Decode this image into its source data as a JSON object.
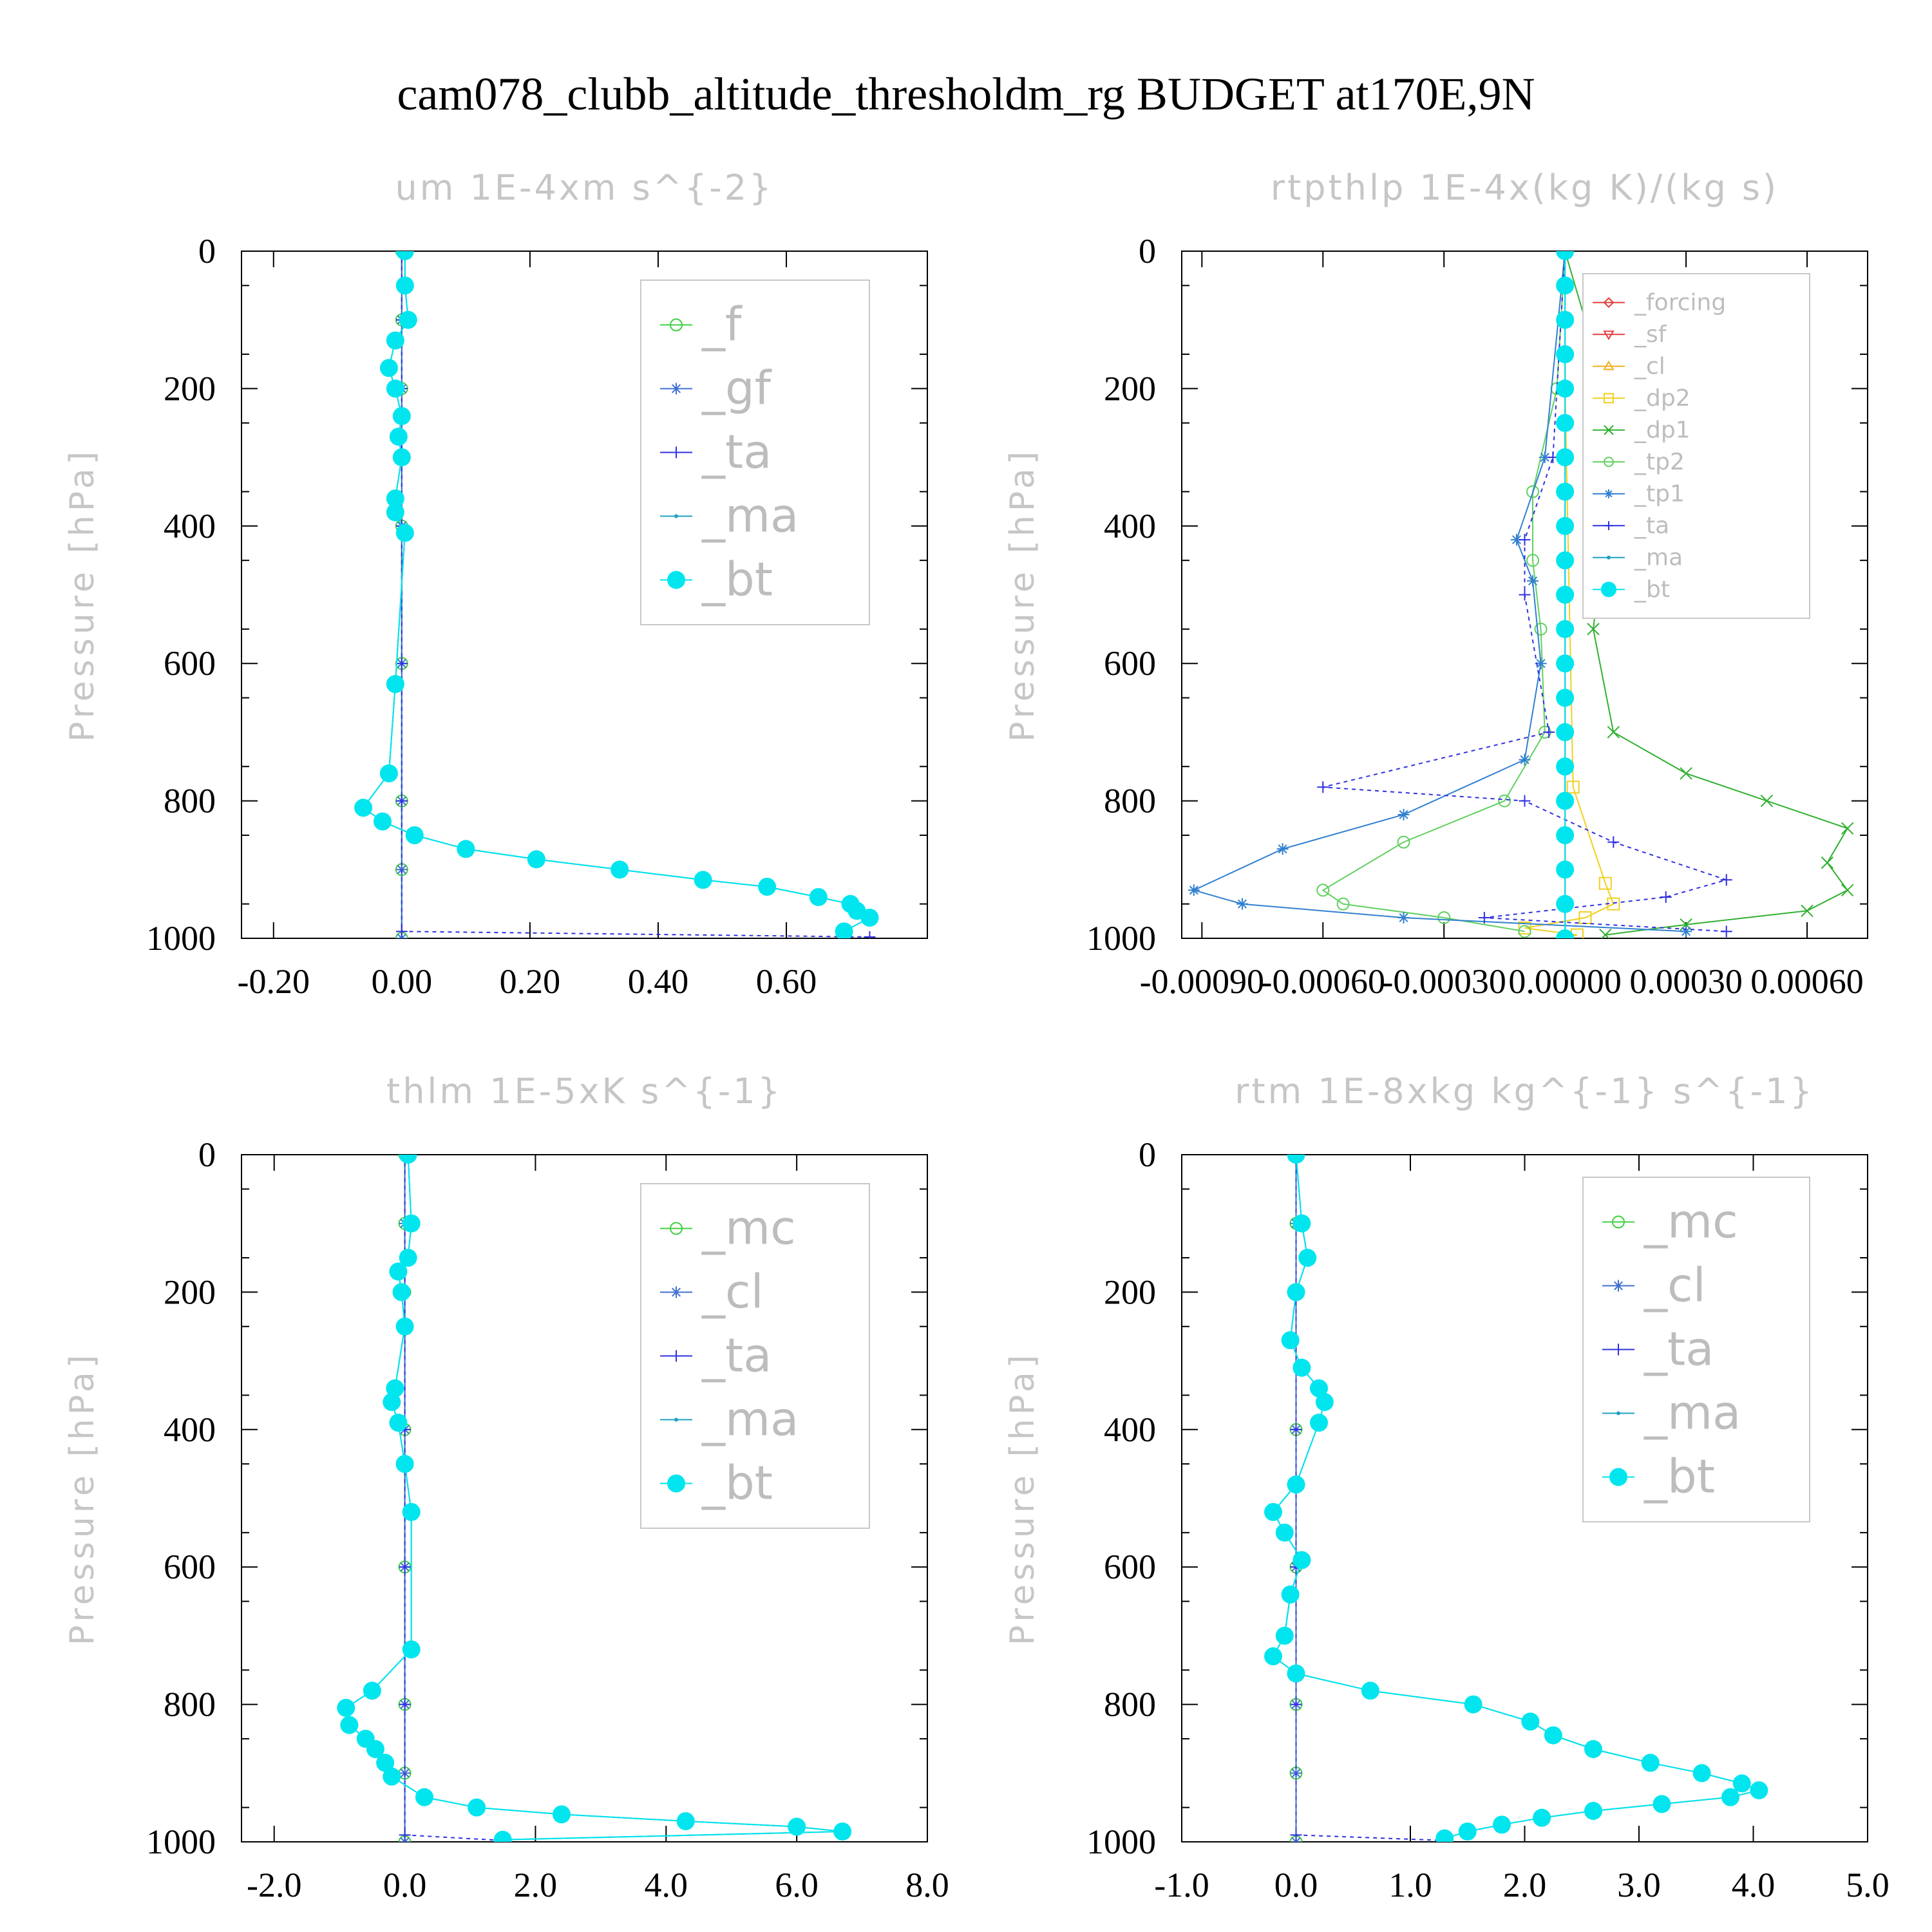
{
  "figure": {
    "title": "cam078_clubb_altitude_thresholdm_rg  BUDGET at170E,9N"
  },
  "chart_data": [
    {
      "type": "line",
      "title": "um  1E-4xm s^{-2}",
      "ylabel": "Pressure [hPa]",
      "xlabel": "",
      "xlim": [
        -0.25,
        0.82
      ],
      "ylim": [
        1000,
        0
      ],
      "xticks": [
        -0.2,
        0.0,
        0.2,
        0.4,
        0.6
      ],
      "xtick_labels": [
        "-0.20",
        "0.00",
        "0.20",
        "0.40",
        "0.60"
      ],
      "yticks": [
        0,
        200,
        400,
        600,
        800,
        1000
      ],
      "ytick_labels": [
        "0",
        "200",
        "400",
        "600",
        "800",
        "1000"
      ],
      "legend_position": "top-right",
      "legend_font": 72,
      "series": [
        {
          "name": "_f",
          "color": "#40d040",
          "marker": "circle-open",
          "x": [
            0.0,
            0.0,
            0.0,
            0.0,
            0.0,
            0.0,
            0.0,
            0.0
          ],
          "y": [
            0,
            100,
            200,
            400,
            600,
            800,
            900,
            1000
          ]
        },
        {
          "name": "_gf",
          "color": "#4070d0",
          "marker": "star",
          "x": [
            0.0,
            0.0,
            0.0,
            0.0,
            0.0,
            0.0,
            0.0,
            0.0
          ],
          "y": [
            0,
            100,
            200,
            400,
            600,
            800,
            900,
            1000
          ]
        },
        {
          "name": "_ta",
          "color": "#3030e0",
          "marker": "plus",
          "dash": "6,6",
          "x": [
            0.0,
            0.0,
            0.0,
            0.0,
            0.0,
            0.0,
            0.0,
            0.73
          ],
          "y": [
            0,
            100,
            200,
            400,
            600,
            800,
            990,
            998
          ]
        },
        {
          "name": "_ma",
          "color": "#20a0c0",
          "marker": "dot",
          "x": [
            0.005,
            0.005,
            0.01,
            -0.01,
            -0.02,
            -0.01,
            0.0,
            -0.005,
            0.0,
            -0.01,
            -0.01,
            0.005,
            -0.01,
            -0.02,
            -0.06,
            -0.03,
            0.02,
            0.1,
            0.21,
            0.34,
            0.47,
            0.57,
            0.65,
            0.7,
            0.71,
            0.73,
            0.69
          ],
          "y": [
            0,
            50,
            100,
            130,
            170,
            200,
            240,
            270,
            300,
            360,
            380,
            410,
            630,
            760,
            810,
            830,
            850,
            870,
            885,
            900,
            915,
            925,
            940,
            950,
            960,
            970,
            990
          ]
        },
        {
          "name": "_bt",
          "color": "#00e5ee",
          "marker": "dot-big",
          "x": [
            0.005,
            0.005,
            0.01,
            -0.01,
            -0.02,
            -0.01,
            0.0,
            -0.005,
            0.0,
            -0.01,
            -0.01,
            0.005,
            -0.01,
            -0.02,
            -0.06,
            -0.03,
            0.02,
            0.1,
            0.21,
            0.34,
            0.47,
            0.57,
            0.65,
            0.7,
            0.71,
            0.73,
            0.69
          ],
          "y": [
            0,
            50,
            100,
            130,
            170,
            200,
            240,
            270,
            300,
            360,
            380,
            410,
            630,
            760,
            810,
            830,
            850,
            870,
            885,
            900,
            915,
            925,
            940,
            950,
            960,
            970,
            990
          ]
        }
      ]
    },
    {
      "type": "line",
      "title": "rtpthlp  1E-4x(kg K)/(kg s)",
      "ylabel": "Pressure [hPa]",
      "xlabel": "",
      "xlim": [
        -0.00095,
        0.00075
      ],
      "ylim": [
        1000,
        0
      ],
      "xticks": [
        -0.0009,
        -0.0006,
        -0.0003,
        0.0,
        0.0003,
        0.0006
      ],
      "xtick_labels": [
        "-0.00090",
        "-0.00060",
        "-0.00030",
        "0.00000",
        "0.00030",
        "0.00060"
      ],
      "yticks": [
        0,
        200,
        400,
        600,
        800,
        1000
      ],
      "ytick_labels": [
        "0",
        "200",
        "400",
        "600",
        "800",
        "1000"
      ],
      "legend_position": "top-right",
      "legend_font": 36,
      "series": [
        {
          "name": "_forcing",
          "color": "#e04040",
          "marker": "diamond-open",
          "x": [
            0.0,
            0.0,
            0.0,
            0.0,
            0.0,
            0.0
          ],
          "y": [
            0,
            200,
            400,
            600,
            800,
            1000
          ]
        },
        {
          "name": "_sf",
          "color": "#e04040",
          "marker": "tri-down",
          "x": [
            0.0,
            0.0,
            0.0,
            0.0,
            0.0,
            0.0
          ],
          "y": [
            0,
            200,
            400,
            600,
            800,
            1000
          ]
        },
        {
          "name": "_cl",
          "color": "#f0b020",
          "marker": "tri-up",
          "x": [
            0.0,
            0.0,
            0.0,
            0.0,
            0.0,
            0.0
          ],
          "y": [
            0,
            200,
            400,
            600,
            800,
            1000
          ]
        },
        {
          "name": "_dp2",
          "color": "#f0d020",
          "marker": "square-open",
          "x": [
            0.0,
            0.0,
            2e-05,
            0.0001,
            0.00012,
            5e-05,
            -0.0001,
            3e-05,
            0.0
          ],
          "y": [
            0,
            200,
            780,
            920,
            950,
            970,
            985,
            995,
            1000
          ]
        },
        {
          "name": "_dp1",
          "color": "#30b030",
          "marker": "x",
          "x": [
            0.0,
            0.0001,
            0.00018,
            0.0001,
            7e-05,
            0.00012,
            0.0003,
            0.0005,
            0.0007,
            0.00065,
            0.0007,
            0.0006,
            0.0003,
            0.0001
          ],
          "y": [
            0,
            200,
            300,
            400,
            550,
            700,
            760,
            800,
            840,
            890,
            930,
            960,
            980,
            995
          ]
        },
        {
          "name": "_tp2",
          "color": "#60d060",
          "marker": "circle-open",
          "x": [
            0.0,
            -2e-05,
            -8e-05,
            -8e-05,
            -6e-05,
            -5e-05,
            -0.00015,
            -0.0004,
            -0.0006,
            -0.00055,
            -0.0003,
            -0.0001
          ],
          "y": [
            0,
            200,
            350,
            450,
            550,
            700,
            800,
            860,
            930,
            950,
            970,
            990
          ]
        },
        {
          "name": "_tp1",
          "color": "#3080d0",
          "marker": "star",
          "x": [
            0.0,
            -5e-05,
            -0.00012,
            -8e-05,
            -6e-05,
            -0.0001,
            -0.0004,
            -0.0007,
            -0.00092,
            -0.0008,
            -0.0004,
            0.0003
          ],
          "y": [
            0,
            300,
            420,
            480,
            600,
            740,
            820,
            870,
            930,
            950,
            970,
            990
          ]
        },
        {
          "name": "_ta",
          "color": "#3030e0",
          "marker": "plus",
          "dash": "6,6",
          "x": [
            0.0,
            -3e-05,
            -0.0001,
            -0.0001,
            -4e-05,
            -0.0006,
            -0.0001,
            0.00012,
            0.0004,
            0.00025,
            -0.0002,
            0.0004
          ],
          "y": [
            0,
            300,
            420,
            500,
            700,
            780,
            800,
            860,
            915,
            940,
            970,
            990
          ]
        },
        {
          "name": "_ma",
          "color": "#20a0c0",
          "marker": "dot",
          "x": [
            0.0,
            0.0,
            0.0,
            0.0,
            0.0,
            0.0
          ],
          "y": [
            0,
            200,
            400,
            600,
            800,
            1000
          ]
        },
        {
          "name": "_bt",
          "color": "#00e5ee",
          "marker": "dot-big",
          "x": [
            0.0,
            0.0,
            0.0,
            0.0,
            0.0,
            0.0,
            0.0,
            0.0,
            0.0,
            0.0,
            0.0,
            0.0,
            0.0,
            0.0,
            0.0,
            0.0,
            0.0,
            0.0,
            0.0,
            0.0,
            0.0
          ],
          "y": [
            0,
            50,
            100,
            150,
            200,
            250,
            300,
            350,
            400,
            450,
            500,
            550,
            600,
            650,
            700,
            750,
            800,
            850,
            900,
            950,
            1000
          ]
        }
      ]
    },
    {
      "type": "line",
      "title": "thlm  1E-5xK s^{-1}",
      "ylabel": "Pressure [hPa]",
      "xlabel": "",
      "xlim": [
        -2.5,
        8.0
      ],
      "ylim": [
        1000,
        0
      ],
      "xticks": [
        -2.0,
        0.0,
        2.0,
        4.0,
        6.0,
        8.0
      ],
      "xtick_labels": [
        "-2.0",
        "0.0",
        "2.0",
        "4.0",
        "6.0",
        "8.0"
      ],
      "yticks": [
        0,
        200,
        400,
        600,
        800,
        1000
      ],
      "ytick_labels": [
        "0",
        "200",
        "400",
        "600",
        "800",
        "1000"
      ],
      "legend_position": "top-right",
      "legend_font": 72,
      "series": [
        {
          "name": "_mc",
          "color": "#40d040",
          "marker": "circle-open",
          "x": [
            0.0,
            0.0,
            0.0,
            0.0,
            0.0,
            0.0,
            0.0,
            0.0
          ],
          "y": [
            0,
            100,
            200,
            400,
            600,
            800,
            900,
            1000
          ]
        },
        {
          "name": "_cl",
          "color": "#4070d0",
          "marker": "star",
          "x": [
            0.0,
            0.0,
            0.0,
            0.0,
            0.0,
            0.0,
            0.0,
            0.0
          ],
          "y": [
            0,
            100,
            200,
            400,
            600,
            800,
            900,
            1000
          ]
        },
        {
          "name": "_ta",
          "color": "#3030e0",
          "marker": "plus",
          "dash": "6,6",
          "x": [
            0.0,
            0.0,
            0.0,
            0.0,
            0.0,
            0.0,
            1.5
          ],
          "y": [
            0,
            200,
            400,
            600,
            800,
            990,
            998
          ]
        },
        {
          "name": "_ma",
          "color": "#20a0c0",
          "marker": "dot",
          "x": [
            0.05,
            0.1,
            0.05,
            -0.1,
            -0.05,
            0.0,
            -0.15,
            -0.2,
            -0.1,
            0.0,
            0.1,
            0.1,
            -0.5,
            -0.9,
            -0.85,
            -0.6,
            -0.45,
            -0.3,
            -0.2,
            0.3,
            1.1,
            2.4,
            4.3,
            6.0,
            6.7,
            1.5
          ],
          "y": [
            0,
            100,
            150,
            170,
            200,
            250,
            340,
            360,
            390,
            450,
            520,
            720,
            780,
            805,
            830,
            850,
            865,
            885,
            905,
            935,
            950,
            960,
            970,
            978,
            985,
            997
          ]
        },
        {
          "name": "_bt",
          "color": "#00e5ee",
          "marker": "dot-big",
          "x": [
            0.05,
            0.1,
            0.05,
            -0.1,
            -0.05,
            0.0,
            -0.15,
            -0.2,
            -0.1,
            0.0,
            0.1,
            0.1,
            -0.5,
            -0.9,
            -0.85,
            -0.6,
            -0.45,
            -0.3,
            -0.2,
            0.3,
            1.1,
            2.4,
            4.3,
            6.0,
            6.7,
            1.5
          ],
          "y": [
            0,
            100,
            150,
            170,
            200,
            250,
            340,
            360,
            390,
            450,
            520,
            720,
            780,
            805,
            830,
            850,
            865,
            885,
            905,
            935,
            950,
            960,
            970,
            978,
            985,
            997
          ]
        }
      ]
    },
    {
      "type": "line",
      "title": "rtm  1E-8xkg kg^{-1} s^{-1}",
      "ylabel": "Pressure [hPa]",
      "xlabel": "",
      "xlim": [
        -1.0,
        5.0
      ],
      "ylim": [
        1000,
        0
      ],
      "xticks": [
        -1.0,
        0.0,
        1.0,
        2.0,
        3.0,
        4.0,
        5.0
      ],
      "xtick_labels": [
        "-1.0",
        "0.0",
        "1.0",
        "2.0",
        "3.0",
        "4.0",
        "5.0"
      ],
      "yticks": [
        0,
        200,
        400,
        600,
        800,
        1000
      ],
      "ytick_labels": [
        "0",
        "200",
        "400",
        "600",
        "800",
        "1000"
      ],
      "legend_position": "top-right",
      "legend_font": 72,
      "series": [
        {
          "name": "_mc",
          "color": "#40d040",
          "marker": "circle-open",
          "x": [
            0.0,
            0.0,
            0.0,
            0.0,
            0.0,
            0.0,
            0.0,
            0.0
          ],
          "y": [
            0,
            100,
            200,
            400,
            600,
            800,
            900,
            1000
          ]
        },
        {
          "name": "_cl",
          "color": "#4070d0",
          "marker": "star",
          "x": [
            0.0,
            0.0,
            0.0,
            0.0,
            0.0,
            0.0,
            0.0,
            0.0
          ],
          "y": [
            0,
            100,
            200,
            400,
            600,
            800,
            900,
            1000
          ]
        },
        {
          "name": "_ta",
          "color": "#3030e0",
          "marker": "plus",
          "dash": "6,6",
          "x": [
            0.0,
            0.0,
            0.0,
            0.0,
            0.0,
            0.0,
            1.3
          ],
          "y": [
            0,
            200,
            400,
            600,
            800,
            990,
            998
          ]
        },
        {
          "name": "_ma",
          "color": "#20a0c0",
          "marker": "dot",
          "x": [
            0.0,
            0.05,
            0.1,
            0.0,
            -0.05,
            0.05,
            0.2,
            0.25,
            0.2,
            0.0,
            -0.2,
            -0.1,
            0.05,
            -0.05,
            -0.1,
            -0.2,
            0.0,
            0.65,
            1.55,
            2.05,
            2.25,
            2.6,
            3.1,
            3.55,
            3.9,
            4.05,
            3.8,
            3.2,
            2.6,
            2.15,
            1.8,
            1.5,
            1.3
          ],
          "y": [
            0,
            100,
            150,
            200,
            270,
            310,
            340,
            360,
            390,
            480,
            520,
            550,
            590,
            640,
            700,
            730,
            755,
            780,
            800,
            825,
            845,
            865,
            885,
            900,
            915,
            925,
            935,
            945,
            955,
            965,
            975,
            985,
            995
          ]
        },
        {
          "name": "_bt",
          "color": "#00e5ee",
          "marker": "dot-big",
          "x": [
            0.0,
            0.05,
            0.1,
            0.0,
            -0.05,
            0.05,
            0.2,
            0.25,
            0.2,
            0.0,
            -0.2,
            -0.1,
            0.05,
            -0.05,
            -0.1,
            -0.2,
            0.0,
            0.65,
            1.55,
            2.05,
            2.25,
            2.6,
            3.1,
            3.55,
            3.9,
            4.05,
            3.8,
            3.2,
            2.6,
            2.15,
            1.8,
            1.5,
            1.3
          ],
          "y": [
            0,
            100,
            150,
            200,
            270,
            310,
            340,
            360,
            390,
            480,
            520,
            550,
            590,
            640,
            700,
            730,
            755,
            780,
            800,
            825,
            845,
            865,
            885,
            900,
            915,
            925,
            935,
            945,
            955,
            965,
            975,
            985,
            995
          ]
        }
      ]
    }
  ]
}
